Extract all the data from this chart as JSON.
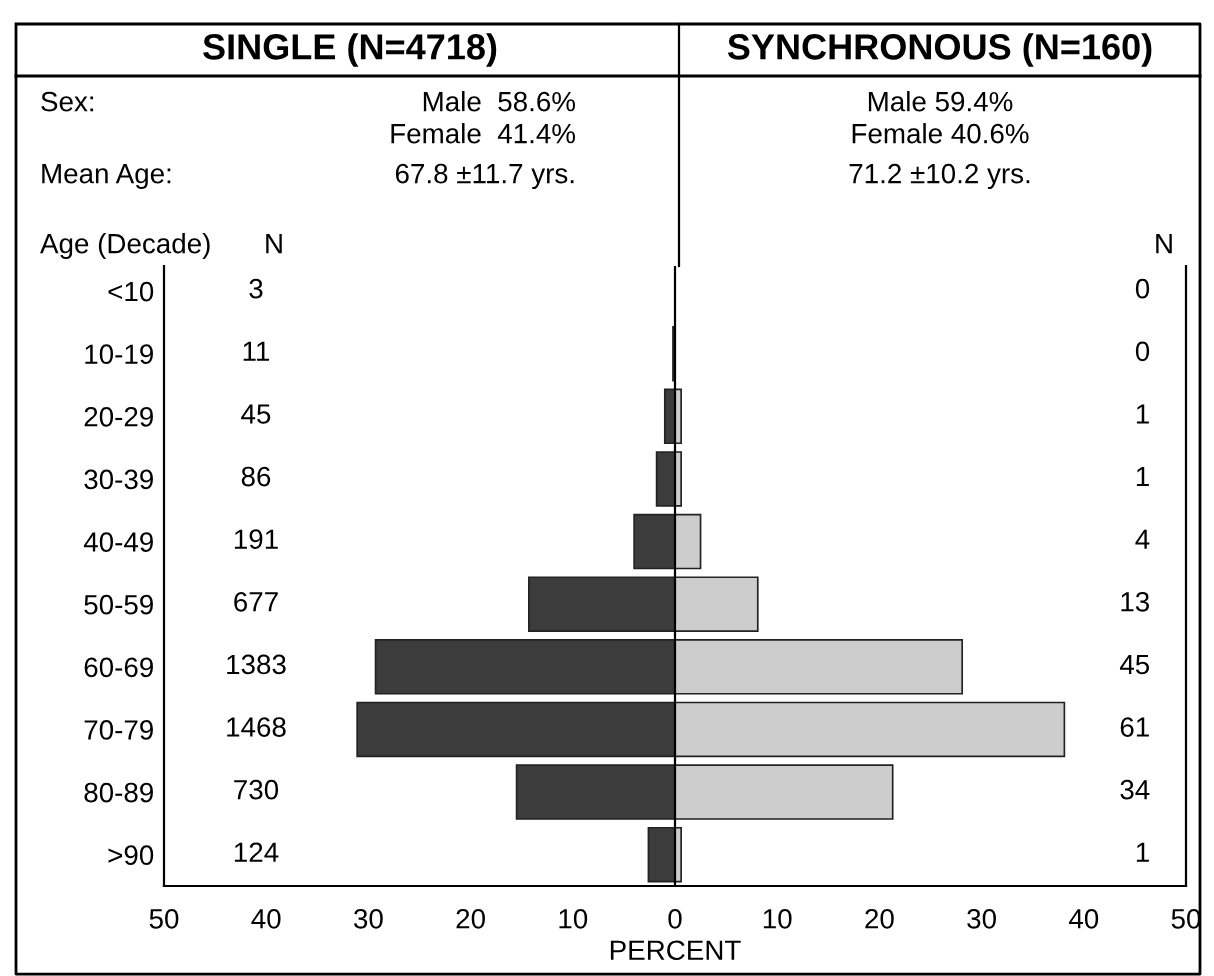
{
  "chart_data": {
    "type": "bar",
    "orientation": "horizontal",
    "categories": [
      "<10",
      "10-19",
      "20-29",
      "30-39",
      "40-49",
      "50-59",
      "60-69",
      "70-79",
      "80-89",
      ">90"
    ],
    "series": [
      {
        "color": "#3c3c3c",
        "values": [
          null,
          -0.2,
          -1.0,
          -1.8,
          -4.0,
          -14.3,
          -29.3,
          -31.1,
          -15.5,
          -2.6
        ]
      },
      {
        "color": "#cdcdcd",
        "values": [
          0,
          0,
          0.6,
          0.6,
          2.5,
          8.1,
          28.1,
          38.1,
          21.3,
          0.6
        ]
      }
    ],
    "stacked": true,
    "xlim": [
      -50,
      50
    ],
    "xticks": [
      {
        "value": -50,
        "label": "50"
      },
      {
        "value": -40,
        "label": "40"
      },
      {
        "value": -30,
        "label": "30"
      },
      {
        "value": -20,
        "label": "20"
      },
      {
        "value": -10,
        "label": "10"
      },
      0,
      10,
      20,
      30,
      40,
      50
    ],
    "xlabel": "PERCENT",
    "ylabel": "Age (Decade)",
    "ref_lines": [
      {
        "axis": "x",
        "value": 0,
        "color": "#000000"
      }
    ],
    "annotations": [
      "SINGLE (N=4718)",
      "SYNCHRONOUS (N=160)",
      "Sex:",
      "Male  58.6%",
      "Female  41.4%",
      "Mean Age:",
      "67.8 ±11.7 yrs.",
      "Male 59.4%",
      "Female 40.6%",
      "71.2 ±10.2 yrs.",
      "N",
      "N",
      "3",
      "11",
      "45",
      "86",
      "191",
      "677",
      "1383",
      "1468",
      "730",
      "124",
      "0",
      "0",
      "1",
      "1",
      "4",
      "13",
      "45",
      "61",
      "34",
      "1"
    ],
    "grid": false,
    "legend": false
  }
}
